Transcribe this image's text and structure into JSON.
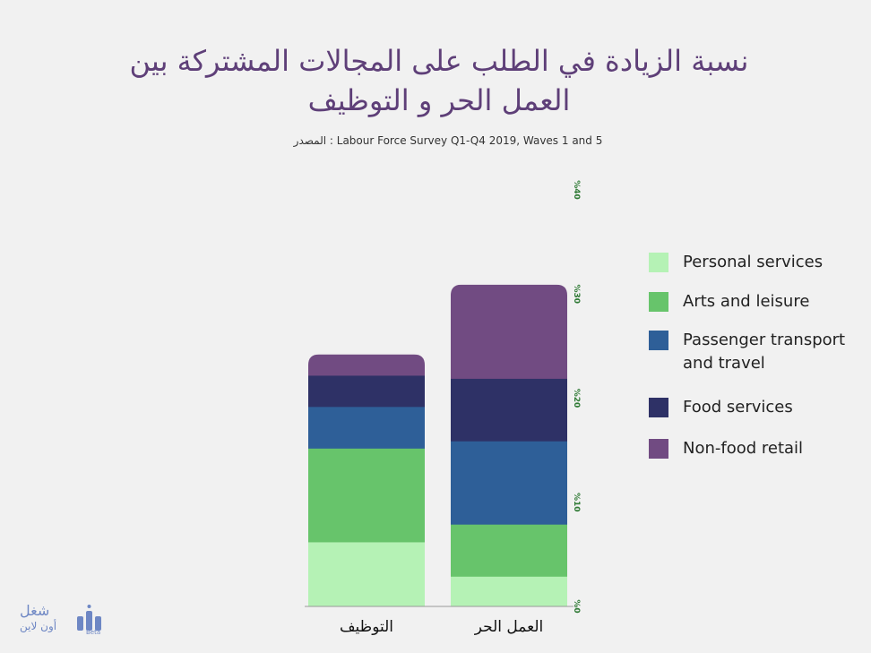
{
  "title_lines": [
    "نسبة الزيادة في الطلب على المجالات المشتركة بين",
    "العمل الحر و التوظيف"
  ],
  "subtitle": "المصدر : Labour Force Survey Q1-Q4 2019, Waves 1 and 5",
  "logo": {
    "line1": "شغل",
    "line2": "أون لاين",
    "badge": "Beta"
  },
  "chart_data": {
    "type": "bar",
    "stacked": true,
    "categories": [
      "التوظيف",
      "العمل الحر"
    ],
    "series": [
      {
        "name": "Personal services",
        "color": "#b5f2b5",
        "values": [
          6.2,
          2.9
        ]
      },
      {
        "name": "Arts and leisure",
        "color": "#67c46b",
        "values": [
          9.0,
          5.0
        ]
      },
      {
        "name": "Passenger transport and travel",
        "color": "#2e5f98",
        "values": [
          4.0,
          8.0
        ]
      },
      {
        "name": "Food services",
        "color": "#2e3166",
        "values": [
          3.0,
          6.0
        ]
      },
      {
        "name": "Non-food retail",
        "color": "#714b82",
        "values": [
          2.0,
          9.0
        ]
      }
    ],
    "yticks": [
      "%0",
      "%10",
      "%20",
      "%30",
      "%40"
    ],
    "ylim": [
      0,
      40
    ],
    "tick_color": "#2f7a35",
    "legend_position": "right"
  }
}
